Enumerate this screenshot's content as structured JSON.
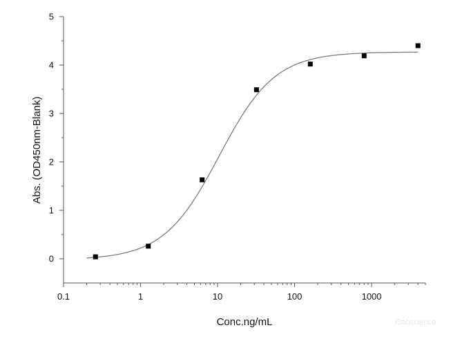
{
  "chart_data": {
    "type": "scatter",
    "xlabel": "Conc.ng/mL",
    "ylabel": "Abs. (OD450nm-Blank)",
    "xscale": "log",
    "xlim": [
      0.1,
      5000
    ],
    "ylim": [
      -0.5,
      5
    ],
    "x_ticks": [
      0.1,
      1,
      10,
      100,
      1000
    ],
    "x_tick_labels": [
      "0.1",
      "1",
      "10",
      "100",
      "1000"
    ],
    "y_ticks": [
      0,
      1,
      2,
      3,
      4,
      5
    ],
    "y_tick_labels": [
      "0",
      "1",
      "2",
      "3",
      "4",
      "5"
    ],
    "grid": false,
    "legend": "none",
    "series": [
      {
        "kind": "points",
        "marker": "square",
        "color": "#000000",
        "x": [
          0.26,
          1.26,
          6.3,
          32,
          160,
          800,
          4000
        ],
        "y": [
          0.04,
          0.26,
          1.63,
          3.49,
          4.02,
          4.19,
          4.4
        ]
      },
      {
        "kind": "fit-curve",
        "color": "#7a7a7a",
        "model": "4PL",
        "params": {
          "bottom": -0.02,
          "top": 4.27,
          "ec50": 10.5,
          "hill": 1.2
        }
      }
    ]
  },
  "watermark": "Elabscience"
}
